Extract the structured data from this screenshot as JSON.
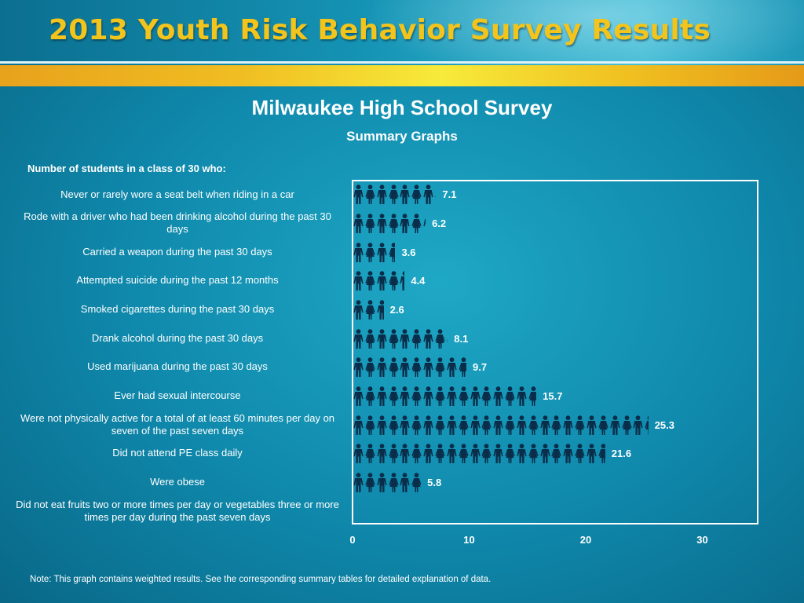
{
  "header": {
    "title": "2013 Youth Risk Behavior Survey Results"
  },
  "chart_data": {
    "type": "bar",
    "orientation": "horizontal",
    "title": "Milwaukee High School Survey",
    "subtitle": "Summary Graphs",
    "question": "Number of students in a class of 30 who:",
    "categories": [
      "Never or rarely wore a seat belt when riding in a car",
      "Rode with a driver who had been drinking alcohol during the past 30 days",
      "Carried a weapon during the past 30 days",
      "Attempted suicide during the past 12 months",
      "Smoked cigarettes during the past 30 days",
      "Drank alcohol during the past 30 days",
      "Used marijuana during the past 30 days",
      "Ever had sexual intercourse",
      "Were not physically active for a total of at least 60 minutes per day on seven of the past seven days",
      "Did not attend PE class daily",
      "Were obese",
      "Did not eat fruits two or more times per day or vegetables three or more times per day during the past seven days"
    ],
    "values": [
      7.1,
      6.2,
      3.6,
      4.4,
      2.6,
      8.1,
      9.7,
      15.7,
      25.3,
      21.6,
      5.8,
      null
    ],
    "value_labels": [
      "7.1",
      "6.2",
      "3.6",
      "4.4",
      "2.6",
      "8.1",
      "9.7",
      "15.7",
      "25.3",
      "21.6",
      "5.8",
      ""
    ],
    "xlim": [
      0,
      30
    ],
    "xticks": [
      "0",
      "10",
      "20",
      "30"
    ],
    "mark": "person-icon",
    "colors": {
      "figure": "#0a2e4a",
      "frame": "#ffffff",
      "text": "#ffffff"
    }
  },
  "note": "Note: This graph contains weighted results. See the corresponding summary tables for detailed explanation of data.",
  "colors": {
    "title_yellow": "#f2c41c",
    "band_yellow": "#f7ea3a",
    "background_teal": "#1593b4"
  }
}
